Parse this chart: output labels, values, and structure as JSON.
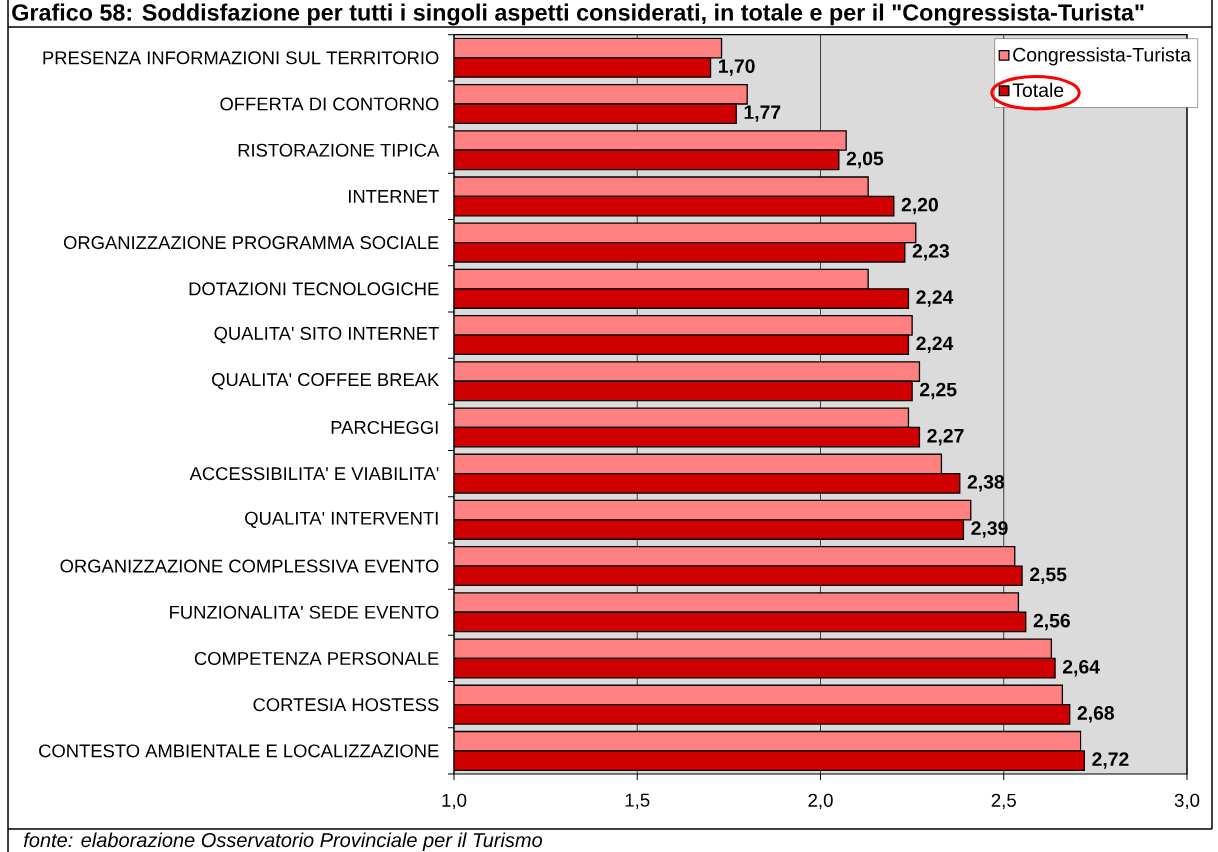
{
  "chart_data": {
    "type": "bar",
    "orientation": "horizontal",
    "title": "Grafico 58: Soddisfazione per tutti i singoli aspetti considerati, in totale e per il \"Congressista-Turista\"",
    "categories": [
      "PRESENZA INFORMAZIONI SUL TERRITORIO",
      "OFFERTA DI CONTORNO",
      "RISTORAZIONE TIPICA",
      "INTERNET",
      "ORGANIZZAZIONE PROGRAMMA SOCIALE",
      "DOTAZIONI TECNOLOGICHE",
      "QUALITA' SITO INTERNET",
      "QUALITA' COFFEE BREAK",
      "PARCHEGGI",
      "ACCESSIBILITA' E VIABILITA'",
      "QUALITA' INTERVENTI",
      "ORGANIZZAZIONE COMPLESSIVA EVENTO",
      "FUNZIONALITA' SEDE EVENTO",
      "COMPETENZA PERSONALE",
      "CORTESIA HOSTESS",
      "CONTESTO AMBIENTALE E LOCALIZZAZIONE"
    ],
    "series": [
      {
        "name": "Congressista-Turista",
        "color": "#ff8080",
        "values": [
          1.73,
          1.8,
          2.07,
          2.13,
          2.26,
          2.13,
          2.25,
          2.27,
          2.24,
          2.33,
          2.41,
          2.53,
          2.54,
          2.63,
          2.66,
          2.71
        ]
      },
      {
        "name": "Totale",
        "color": "#d00000",
        "values": [
          1.7,
          1.77,
          2.05,
          2.2,
          2.23,
          2.24,
          2.24,
          2.25,
          2.27,
          2.38,
          2.39,
          2.55,
          2.56,
          2.64,
          2.68,
          2.72
        ],
        "value_labels": [
          "1,70",
          "1,77",
          "2,05",
          "2,20",
          "2,23",
          "2,24",
          "2,24",
          "2,25",
          "2,27",
          "2,38",
          "2,39",
          "2,55",
          "2,56",
          "2,64",
          "2,68",
          "2,72"
        ]
      }
    ],
    "xlim": [
      1,
      3
    ],
    "xticks": [
      {
        "value": 1,
        "label": "1,0"
      },
      {
        "value": 1.5,
        "label": "1,5"
      },
      {
        "value": 2,
        "label": "2,0"
      },
      {
        "value": 2.5,
        "label": "2,5"
      },
      {
        "value": 3,
        "label": "3,0"
      }
    ],
    "grid": "x",
    "legend": "top right",
    "annotations": [
      "fonte: elaborazione Osservatorio Provinciale per il Turismo"
    ]
  }
}
